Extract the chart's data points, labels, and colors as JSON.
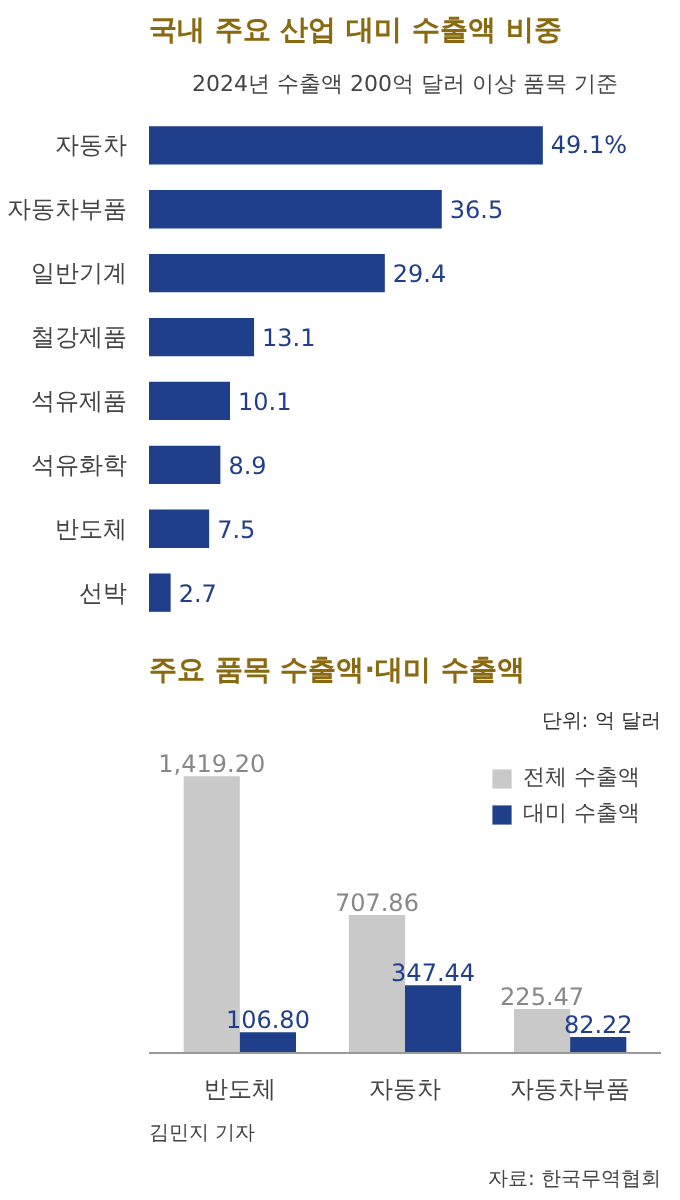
{
  "chart_data": [
    {
      "type": "bar",
      "orientation": "horizontal",
      "title": "국내 주요 산업 대미 수출액 비중",
      "subtitle": "2024년 수출액 200억 달러 이상 품목 기준",
      "categories": [
        "자동차",
        "자동차부품",
        "일반기계",
        "철강제품",
        "석유제품",
        "석유화학",
        "반도체",
        "선박"
      ],
      "values": [
        49.1,
        36.5,
        29.4,
        13.1,
        10.1,
        8.9,
        7.5,
        2.7
      ],
      "value_labels": [
        "49.1%",
        "36.5",
        "29.4",
        "13.1",
        "10.1",
        "8.9",
        "7.5",
        "2.7"
      ],
      "color": "#1f3f8a",
      "grid": false,
      "legend": false
    },
    {
      "type": "bar",
      "title": "주요 품목 수출액·대미 수출액",
      "categories": [
        "반도체",
        "자동차",
        "자동차부품"
      ],
      "series": [
        {
          "name": "전체 수출액",
          "color": "#c9c9c9",
          "values": [
            1419.2,
            707.86,
            225.47
          ],
          "value_labels": [
            "1,419.20",
            "707.86",
            "225.47"
          ]
        },
        {
          "name": "대미 수출액",
          "color": "#1f3f8a",
          "values": [
            106.8,
            347.44,
            82.22
          ],
          "value_labels": [
            "106.80",
            "347.44",
            "82.22"
          ]
        }
      ],
      "annotations": [
        "단위: 억 달러",
        "김민지 기자",
        "자료: 한국무역협회"
      ],
      "grid": false,
      "legend": "top right"
    }
  ]
}
